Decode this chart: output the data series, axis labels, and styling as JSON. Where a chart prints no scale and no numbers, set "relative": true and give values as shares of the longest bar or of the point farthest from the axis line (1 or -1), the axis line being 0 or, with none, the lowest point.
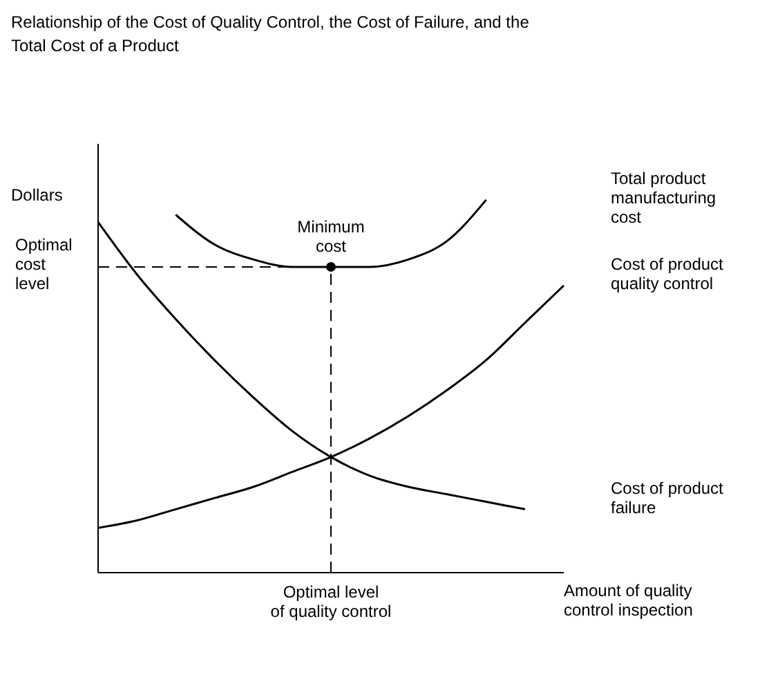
{
  "chart_data": {
    "type": "line",
    "title": "Relationship of the Cost of Quality Control, the Cost of Failure, and the Total Cost of a Product",
    "ylabel": "Dollars",
    "xlabel": "Amount of quality control inspection",
    "relative": true,
    "grid": false,
    "legend": false,
    "marker": "none",
    "line_style": "solid",
    "categories": [
      null,
      null,
      null,
      null,
      null,
      null,
      null,
      null,
      null,
      null,
      null,
      null,
      null
    ],
    "series": [
      {
        "name": "Total product manufacturing cost",
        "color": "#000000",
        "values": [
          null,
          null,
          0.96,
          0.88,
          0.84,
          0.82,
          0.82,
          0.82,
          0.84,
          0.89,
          1,
          null,
          null
        ]
      },
      {
        "name": "Cost of product quality control",
        "color": "#000000",
        "values": [
          0.12,
          0.14,
          0.17,
          0.2,
          0.23,
          0.27,
          0.31,
          0.36,
          0.42,
          0.49,
          0.57,
          0.67,
          0.77
        ]
      },
      {
        "name": "Cost of product failure",
        "color": "#000000",
        "values": [
          0.94,
          0.8,
          0.68,
          0.57,
          0.47,
          0.38,
          0.31,
          0.26,
          0.23,
          0.21,
          0.19,
          0.17,
          null
        ]
      }
    ],
    "ref_lines": [
      {
        "axis": "y",
        "value": 0.82,
        "label": "Optimal cost level",
        "line_style": "dashed",
        "color": "#000000"
      }
    ],
    "annotations": [
      "Minimum cost",
      "Optimal level of quality control"
    ]
  }
}
